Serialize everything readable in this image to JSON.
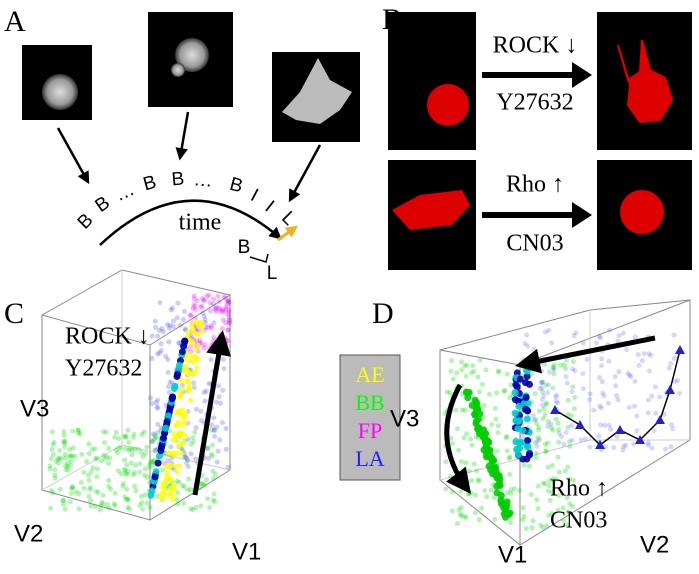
{
  "panels": {
    "A": {
      "label": "A",
      "sequence": [
        "B",
        "B",
        "…",
        "B",
        "B",
        "…",
        "B",
        "I",
        "I",
        "L"
      ],
      "axis_label": "time",
      "transition_from": "B",
      "transition_to": "L"
    },
    "B": {
      "label": "B",
      "top": {
        "line1": "ROCK ↓",
        "line2": "Y27632"
      },
      "bottom": {
        "line1": "Rho ↑",
        "line2": "CN03"
      }
    },
    "C": {
      "label": "C",
      "treatment_line1": "ROCK ↓",
      "treatment_line2": "Y27632",
      "axes": [
        "V1",
        "V2",
        "V3"
      ]
    },
    "D": {
      "label": "D",
      "treatment_line1": "Rho ↑",
      "treatment_line2": "CN03",
      "axes": [
        "V1",
        "V2",
        "V3"
      ]
    },
    "legend": [
      "AE",
      "BB",
      "FP",
      "LA"
    ]
  }
}
